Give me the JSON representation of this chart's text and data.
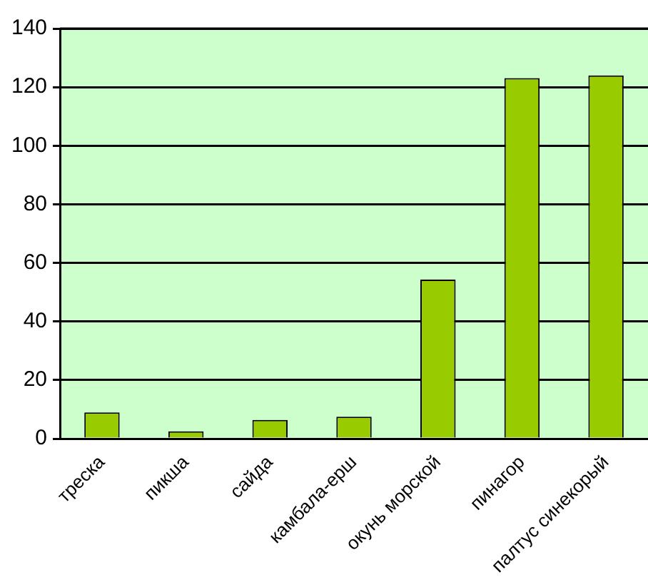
{
  "chart_data": {
    "type": "bar",
    "categories": [
      "треска",
      "пикша",
      "сайда",
      "камбала-ерш",
      "окунь морской",
      "пинагор",
      "палтус синекорый"
    ],
    "values": [
      9,
      2.5,
      6.4,
      7.5,
      54.3,
      123.1,
      124
    ],
    "color": "#99cc00",
    "ylim": [
      0,
      140
    ],
    "yticks": [
      0,
      20,
      40,
      60,
      80,
      100,
      120,
      140
    ],
    "grid": "y",
    "legend": false
  }
}
